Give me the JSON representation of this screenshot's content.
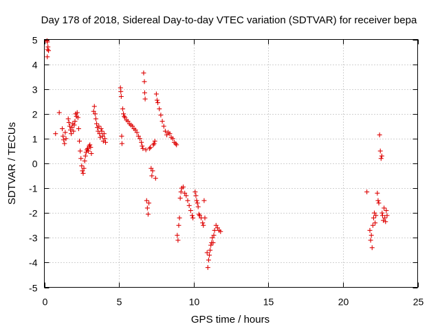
{
  "chart_data": {
    "type": "scatter",
    "title": "Day 178 of 2018, Sidereal Day-to-day VTEC variation (SDTVAR) for receiver bepa",
    "xlabel": "GPS time / hours",
    "ylabel": "SDTVAR / TECUs",
    "xlim": [
      0,
      25
    ],
    "ylim": [
      -5,
      5
    ],
    "xticks": [
      0,
      5,
      10,
      15,
      20,
      25
    ],
    "yticks": [
      -5,
      -4,
      -3,
      -2,
      -1,
      0,
      1,
      2,
      3,
      4,
      5
    ],
    "grid": true,
    "marker": "+",
    "color": "#dd0000",
    "series": [
      {
        "name": "SDTVAR",
        "points": [
          [
            0.18,
            4.95
          ],
          [
            0.2,
            4.9
          ],
          [
            0.22,
            4.6
          ],
          [
            0.2,
            4.3
          ],
          [
            0.24,
            4.7
          ],
          [
            0.28,
            4.55
          ],
          [
            0.75,
            1.2
          ],
          [
            1.0,
            2.05
          ],
          [
            1.2,
            1.4
          ],
          [
            1.25,
            1.1
          ],
          [
            1.3,
            0.95
          ],
          [
            1.35,
            0.8
          ],
          [
            1.4,
            1.25
          ],
          [
            1.45,
            1.0
          ],
          [
            1.6,
            1.8
          ],
          [
            1.65,
            1.65
          ],
          [
            1.7,
            1.5
          ],
          [
            1.75,
            1.35
          ],
          [
            1.8,
            1.2
          ],
          [
            1.85,
            1.45
          ],
          [
            1.9,
            1.6
          ],
          [
            1.95,
            1.3
          ],
          [
            2.0,
            1.55
          ],
          [
            2.05,
            1.7
          ],
          [
            2.1,
            2.0
          ],
          [
            2.15,
            1.9
          ],
          [
            2.2,
            2.05
          ],
          [
            2.25,
            1.85
          ],
          [
            2.3,
            1.4
          ],
          [
            2.35,
            0.9
          ],
          [
            2.4,
            0.5
          ],
          [
            2.45,
            0.2
          ],
          [
            2.5,
            -0.1
          ],
          [
            2.55,
            -0.3
          ],
          [
            2.6,
            -0.4
          ],
          [
            2.65,
            -0.2
          ],
          [
            2.7,
            0.1
          ],
          [
            2.75,
            0.3
          ],
          [
            2.8,
            0.45
          ],
          [
            2.85,
            0.55
          ],
          [
            2.9,
            0.6
          ],
          [
            2.95,
            0.5
          ],
          [
            3.0,
            0.7
          ],
          [
            3.05,
            0.75
          ],
          [
            3.1,
            0.65
          ],
          [
            3.15,
            0.4
          ],
          [
            3.3,
            2.1
          ],
          [
            3.35,
            2.3
          ],
          [
            3.4,
            2.0
          ],
          [
            3.45,
            1.8
          ],
          [
            3.5,
            1.6
          ],
          [
            3.55,
            1.45
          ],
          [
            3.6,
            1.3
          ],
          [
            3.65,
            1.5
          ],
          [
            3.7,
            1.2
          ],
          [
            3.75,
            1.05
          ],
          [
            3.8,
            1.4
          ],
          [
            3.85,
            1.3
          ],
          [
            3.9,
            1.1
          ],
          [
            3.95,
            0.9
          ],
          [
            4.0,
            1.2
          ],
          [
            4.05,
            1.0
          ],
          [
            4.1,
            0.85
          ],
          [
            5.1,
            3.05
          ],
          [
            5.12,
            2.9
          ],
          [
            5.15,
            2.7
          ],
          [
            5.18,
            1.1
          ],
          [
            5.2,
            0.8
          ],
          [
            5.25,
            2.2
          ],
          [
            5.3,
            2.0
          ],
          [
            5.35,
            1.9
          ],
          [
            5.4,
            1.85
          ],
          [
            5.5,
            1.75
          ],
          [
            5.6,
            1.7
          ],
          [
            5.7,
            1.6
          ],
          [
            5.8,
            1.55
          ],
          [
            5.9,
            1.5
          ],
          [
            6.0,
            1.4
          ],
          [
            6.1,
            1.35
          ],
          [
            6.2,
            1.25
          ],
          [
            6.3,
            1.1
          ],
          [
            6.4,
            1.0
          ],
          [
            6.5,
            0.85
          ],
          [
            6.55,
            0.7
          ],
          [
            6.6,
            0.6
          ],
          [
            6.65,
            3.65
          ],
          [
            6.7,
            3.3
          ],
          [
            6.72,
            2.85
          ],
          [
            6.75,
            2.6
          ],
          [
            6.8,
            0.55
          ],
          [
            6.85,
            -1.5
          ],
          [
            6.9,
            -1.8
          ],
          [
            6.95,
            -2.05
          ],
          [
            7.0,
            -1.6
          ],
          [
            7.05,
            0.6
          ],
          [
            7.1,
            0.65
          ],
          [
            7.15,
            -0.2
          ],
          [
            7.2,
            -0.5
          ],
          [
            7.25,
            -0.3
          ],
          [
            7.3,
            0.75
          ],
          [
            7.35,
            0.8
          ],
          [
            7.4,
            0.9
          ],
          [
            7.45,
            -0.6
          ],
          [
            7.5,
            2.8
          ],
          [
            7.55,
            2.55
          ],
          [
            7.6,
            2.45
          ],
          [
            7.7,
            2.2
          ],
          [
            7.8,
            1.95
          ],
          [
            7.9,
            1.7
          ],
          [
            8.0,
            1.5
          ],
          [
            8.1,
            1.3
          ],
          [
            8.2,
            1.15
          ],
          [
            8.3,
            1.25
          ],
          [
            8.4,
            1.2
          ],
          [
            8.5,
            1.05
          ],
          [
            8.6,
            1.0
          ],
          [
            8.7,
            0.85
          ],
          [
            8.8,
            0.8
          ],
          [
            8.85,
            0.75
          ],
          [
            8.9,
            -2.9
          ],
          [
            8.95,
            -3.1
          ],
          [
            9.0,
            -2.5
          ],
          [
            9.05,
            -2.2
          ],
          [
            9.1,
            -1.4
          ],
          [
            9.15,
            -1.15
          ],
          [
            9.2,
            -1.0
          ],
          [
            9.3,
            -0.95
          ],
          [
            9.4,
            -1.2
          ],
          [
            9.5,
            -1.3
          ],
          [
            9.6,
            -1.5
          ],
          [
            9.7,
            -1.7
          ],
          [
            9.8,
            -1.9
          ],
          [
            9.9,
            -2.1
          ],
          [
            9.95,
            -2.2
          ],
          [
            10.1,
            -1.15
          ],
          [
            10.15,
            -1.3
          ],
          [
            10.2,
            -1.5
          ],
          [
            10.25,
            -1.6
          ],
          [
            10.3,
            -1.75
          ],
          [
            10.35,
            -2.05
          ],
          [
            10.4,
            -2.1
          ],
          [
            10.5,
            -2.2
          ],
          [
            10.6,
            -2.4
          ],
          [
            10.65,
            -2.5
          ],
          [
            10.7,
            -1.5
          ],
          [
            10.75,
            -2.2
          ],
          [
            10.9,
            -3.6
          ],
          [
            10.95,
            -4.2
          ],
          [
            11.0,
            -3.9
          ],
          [
            11.05,
            -3.7
          ],
          [
            11.1,
            -3.5
          ],
          [
            11.15,
            -3.3
          ],
          [
            11.2,
            -3.2
          ],
          [
            11.25,
            -3.0
          ],
          [
            11.3,
            -3.2
          ],
          [
            11.35,
            -2.9
          ],
          [
            11.4,
            -2.7
          ],
          [
            11.5,
            -2.5
          ],
          [
            11.6,
            -2.6
          ],
          [
            11.7,
            -2.7
          ],
          [
            11.8,
            -2.75
          ],
          [
            21.6,
            -1.15
          ],
          [
            21.8,
            -2.7
          ],
          [
            21.85,
            -3.1
          ],
          [
            21.9,
            -2.9
          ],
          [
            21.95,
            -3.4
          ],
          [
            22.0,
            -2.5
          ],
          [
            22.05,
            -2.2
          ],
          [
            22.1,
            -2.0
          ],
          [
            22.15,
            -2.4
          ],
          [
            22.2,
            -2.1
          ],
          [
            22.3,
            -1.2
          ],
          [
            22.35,
            -1.5
          ],
          [
            22.4,
            -1.6
          ],
          [
            22.45,
            1.15
          ],
          [
            22.5,
            0.5
          ],
          [
            22.55,
            0.2
          ],
          [
            22.6,
            0.3
          ],
          [
            22.62,
            -2.0
          ],
          [
            22.65,
            -2.1
          ],
          [
            22.7,
            -2.3
          ],
          [
            22.75,
            -1.8
          ],
          [
            22.8,
            -2.2
          ],
          [
            22.85,
            -2.35
          ],
          [
            22.9,
            -1.9
          ],
          [
            22.95,
            -2.1
          ]
        ]
      }
    ]
  }
}
